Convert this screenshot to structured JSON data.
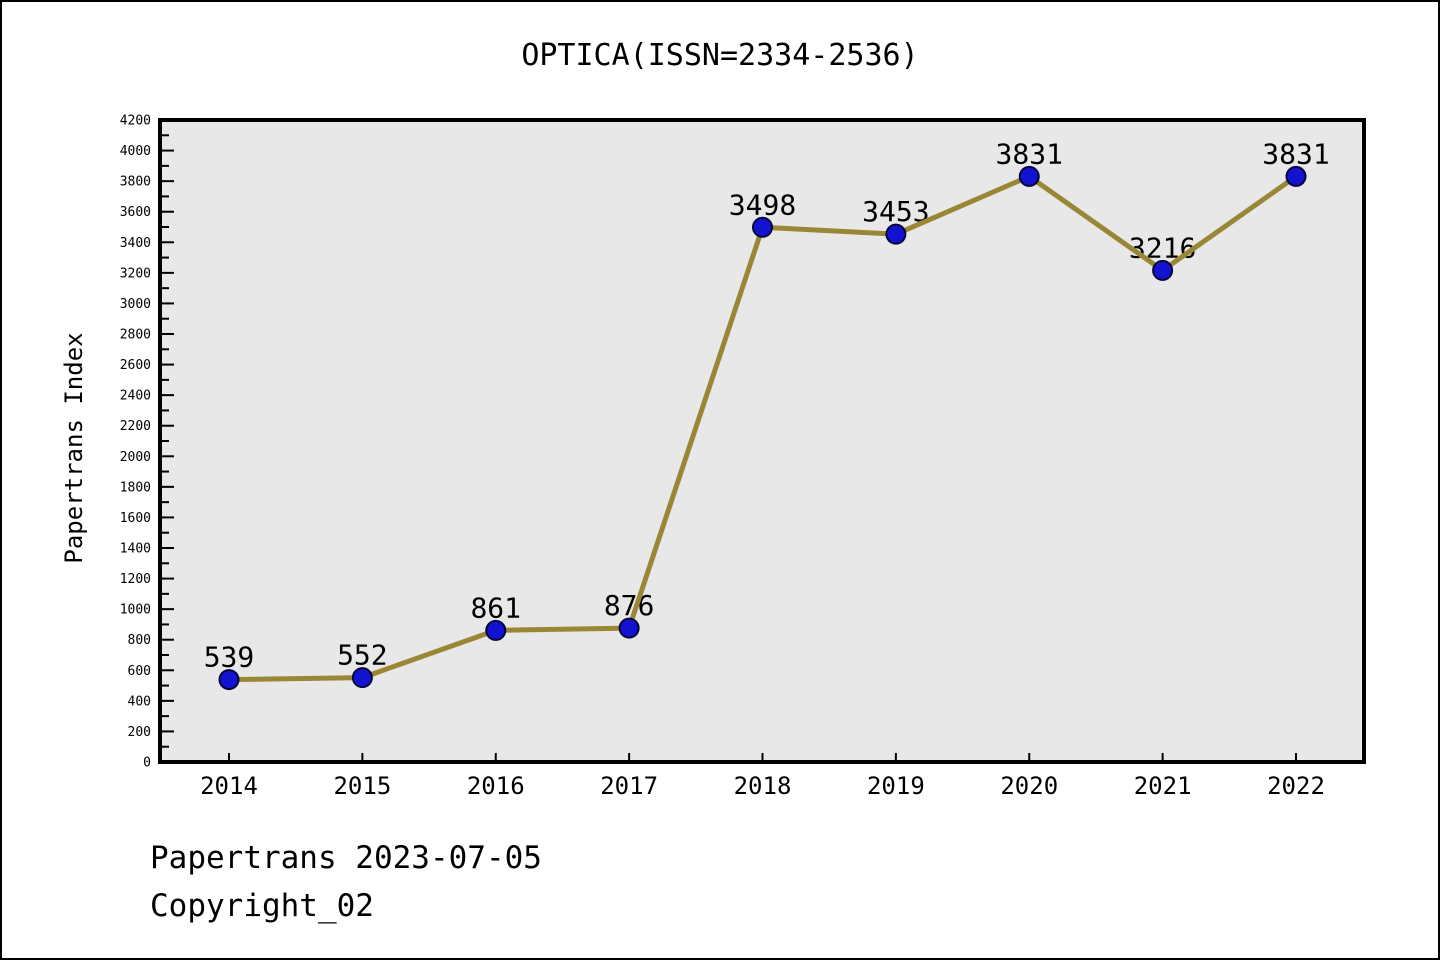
{
  "page": {
    "title": "OPTICA(ISSN=2334-2536)",
    "footer": {
      "date_line": "Papertrans 2023-07-05",
      "copyright_line": "Copyright_02"
    }
  },
  "chart_data": {
    "type": "line",
    "title": "OPTICA(ISSN=2334-2536)",
    "xlabel": "",
    "ylabel": "Papertrans Index",
    "categories": [
      "2014",
      "2015",
      "2016",
      "2017",
      "2018",
      "2019",
      "2020",
      "2021",
      "2022"
    ],
    "series": [
      {
        "name": "Papertrans Index",
        "values": [
          539,
          552,
          861,
          876,
          3498,
          3453,
          3831,
          3216,
          3831
        ]
      }
    ],
    "point_labels": [
      "539",
      "552",
      "861",
      "876",
      "3498",
      "3453",
      "3831",
      "3216",
      "3831"
    ],
    "ylim": [
      0,
      4200
    ],
    "ytick_step": 200,
    "yminor_tick_step": 100,
    "grid": false,
    "legend": "none",
    "colors": {
      "line": "#998735",
      "marker_fill": "#1212d0",
      "marker_edge": "#05053a",
      "plot_background": "#e8e8e8",
      "axis": "#000000",
      "text": "#000000",
      "page_background": "#ffffff"
    }
  }
}
